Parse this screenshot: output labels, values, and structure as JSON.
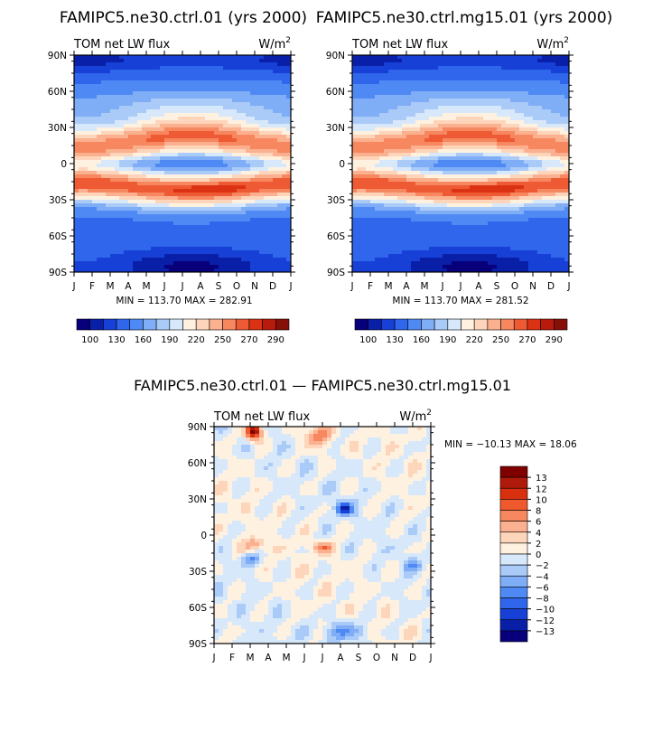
{
  "chart_data": [
    {
      "type": "heatmap",
      "title": "FAMIPC5.ne30.ctrl.01 (yrs 2000)",
      "subtitle_left": "TOM net LW flux",
      "units": "W/m",
      "units_exp": "2",
      "x_ticks": [
        "J",
        "F",
        "M",
        "A",
        "M",
        "J",
        "J",
        "A",
        "S",
        "O",
        "N",
        "D",
        "J"
      ],
      "y_ticks": [
        "90N",
        "60N",
        "30N",
        "0",
        "30S",
        "60S",
        "90S"
      ],
      "stats": "MIN = 113.70 MAX = 282.91",
      "colorbar_labels": [
        "100",
        "130",
        "160",
        "190",
        "220",
        "250",
        "270",
        "290"
      ],
      "xlabel": "",
      "ylabel": ""
    },
    {
      "type": "heatmap",
      "title": "FAMIPC5.ne30.ctrl.mg15.01 (yrs 2000)",
      "subtitle_left": "TOM net LW flux",
      "units": "W/m",
      "units_exp": "2",
      "x_ticks": [
        "J",
        "F",
        "M",
        "A",
        "M",
        "J",
        "J",
        "A",
        "S",
        "O",
        "N",
        "D",
        "J"
      ],
      "y_ticks": [
        "90N",
        "60N",
        "30N",
        "0",
        "30S",
        "60S",
        "90S"
      ],
      "stats": "MIN = 113.70 MAX = 281.52",
      "colorbar_labels": [
        "100",
        "130",
        "160",
        "190",
        "220",
        "250",
        "270",
        "290"
      ],
      "xlabel": "",
      "ylabel": ""
    },
    {
      "type": "heatmap",
      "title": "FAMIPC5.ne30.ctrl.01 — FAMIPC5.ne30.ctrl.mg15.01",
      "subtitle_left": "TOM net LW flux",
      "units": "W/m",
      "units_exp": "2",
      "x_ticks": [
        "J",
        "F",
        "M",
        "A",
        "M",
        "J",
        "J",
        "A",
        "S",
        "O",
        "N",
        "D",
        "J"
      ],
      "y_ticks": [
        "90N",
        "60N",
        "30N",
        "0",
        "30S",
        "60S",
        "90S"
      ],
      "stats": "MIN = −10.13 MAX =   18.06",
      "colorbar_labels": [
        "13",
        "12",
        "10",
        "8",
        "6",
        "4",
        "2",
        "0",
        "−2",
        "−4",
        "−6",
        "−8",
        "−10",
        "−12",
        "−13"
      ],
      "xlabel": "",
      "ylabel": ""
    }
  ],
  "palettes": {
    "abs": [
      "#08007a",
      "#0a1fa8",
      "#1740d6",
      "#2f66ec",
      "#4f8af4",
      "#7fadf6",
      "#aacaf8",
      "#d8e8fb",
      "#fff1e0",
      "#fdd5ba",
      "#fbb08f",
      "#f6875f",
      "#ee5a34",
      "#dc3214",
      "#b81b0c",
      "#861008"
    ],
    "diff": [
      "#800000",
      "#b01a0a",
      "#d8300e",
      "#f0582e",
      "#f7875e",
      "#fbb08f",
      "#fdd5ba",
      "#fff1e0",
      "#d8e8fb",
      "#aacaf8",
      "#7fadf6",
      "#4f8af4",
      "#2f66ec",
      "#1740d6",
      "#0a1fa8",
      "#08007a"
    ]
  }
}
